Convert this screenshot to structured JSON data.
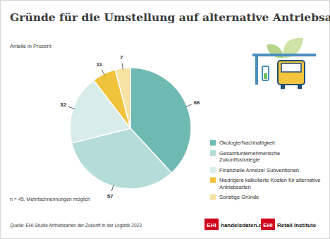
{
  "chart_data": {
    "type": "pie",
    "title": "Gründe für die Umstellung auf alternative Antriebsarten",
    "subtitle": "Anteile in Prozent",
    "categories": [
      "Ökologie/Nachhaltigkeit",
      "Gesamtunternehmerische Zukunftsstrategie",
      "Finanzielle Anreize/ Subventionen",
      "Niedrigere kalkulierte Kosten für alternative Antriebsarten",
      "Sonstige Gründe"
    ],
    "values": [
      66,
      57,
      32,
      11,
      7
    ],
    "colors": [
      "#6fb9b3",
      "#b4dcd8",
      "#d8ecea",
      "#efc43c",
      "#f6e2a2"
    ],
    "data_labels": true,
    "legend": "right",
    "annotations": [
      "n = 45, Mehrfachnennungen möglich"
    ],
    "source": "Quelle: EHI-Studie Antriebsarten der Zukunft in der Logistik 2023",
    "logos": [
      {
        "mark": "EHI",
        "text": "handelsdaten.de"
      },
      {
        "mark": "EHI",
        "text": "Retail Institute"
      }
    ]
  }
}
